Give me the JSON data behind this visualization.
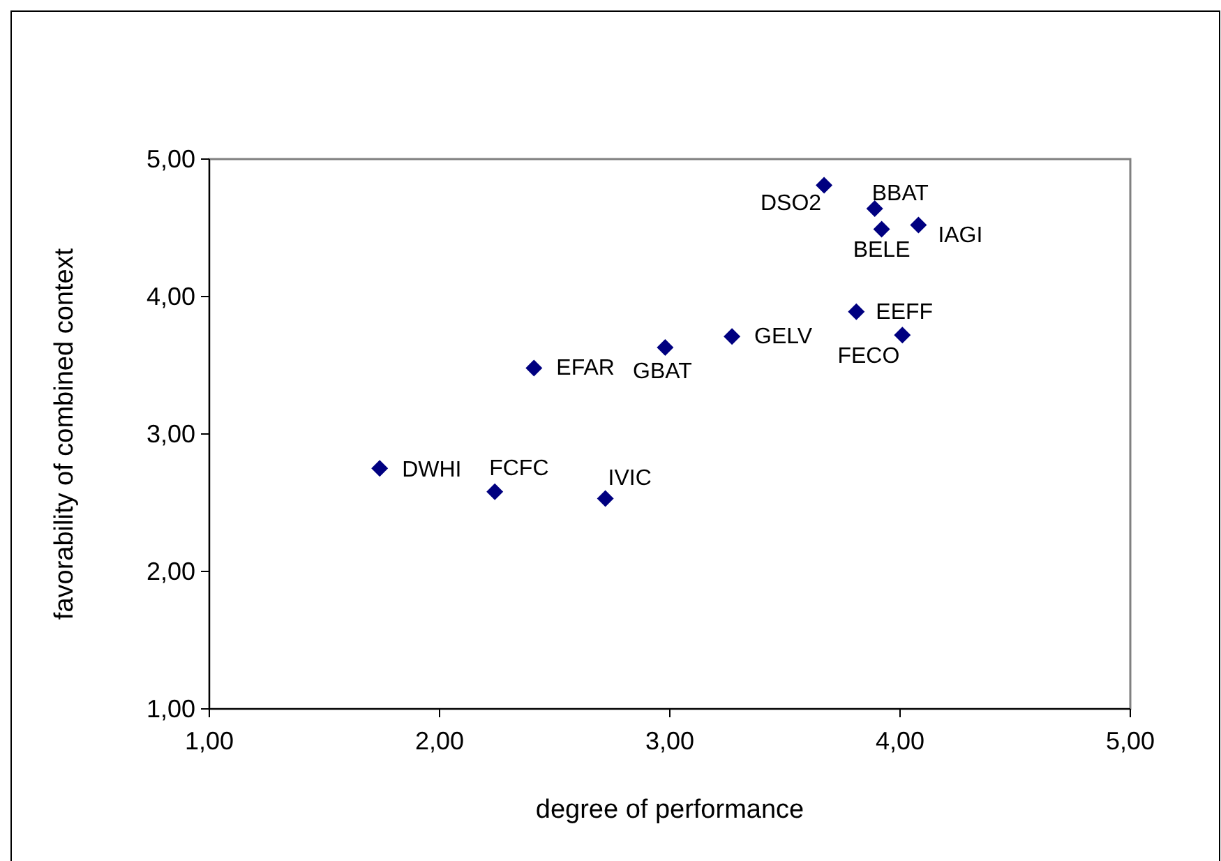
{
  "chart_data": {
    "type": "scatter",
    "xlabel": "degree of performance",
    "ylabel": "favorability of combined context",
    "x": [
      3.67,
      3.89,
      3.92,
      4.08,
      3.81,
      4.01,
      3.27,
      2.98,
      2.41,
      1.74,
      2.24,
      2.72
    ],
    "series": [
      {
        "color": "#000080",
        "values": [
          4.81,
          4.64,
          4.49,
          4.52,
          3.89,
          3.72,
          3.71,
          3.63,
          3.48,
          2.75,
          2.58,
          2.53
        ]
      }
    ],
    "xlim": [
      1,
      5
    ],
    "ylim": [
      1,
      5
    ],
    "xticks": [
      {
        "value": 1,
        "label": "1,00"
      },
      {
        "value": 2,
        "label": "2,00"
      },
      {
        "value": 3,
        "label": "3,00"
      },
      {
        "value": 4,
        "label": "4,00"
      },
      {
        "value": 5,
        "label": "5,00"
      }
    ],
    "yticks": [
      {
        "value": 1,
        "label": "1,00"
      },
      {
        "value": 2,
        "label": "2,00"
      },
      {
        "value": 3,
        "label": "3,00"
      },
      {
        "value": 4,
        "label": "4,00"
      },
      {
        "value": 5,
        "label": "5,00"
      }
    ],
    "grid": false,
    "marker": "diamond",
    "annotations": [
      {
        "text": "DSO2",
        "x": 3.67,
        "y": 4.81
      },
      {
        "text": "BBAT",
        "x": 3.89,
        "y": 4.64
      },
      {
        "text": "BELE",
        "x": 3.92,
        "y": 4.49
      },
      {
        "text": "IAGI",
        "x": 4.08,
        "y": 4.52
      },
      {
        "text": "EEFF",
        "x": 3.81,
        "y": 3.89
      },
      {
        "text": "FECO",
        "x": 4.01,
        "y": 3.72
      },
      {
        "text": "GELV",
        "x": 3.27,
        "y": 3.71
      },
      {
        "text": "GBAT",
        "x": 2.98,
        "y": 3.63
      },
      {
        "text": "EFAR",
        "x": 2.41,
        "y": 3.48
      },
      {
        "text": "DWHI",
        "x": 1.74,
        "y": 2.75
      },
      {
        "text": "FCFC",
        "x": 2.24,
        "y": 2.58
      },
      {
        "text": "IVIC",
        "x": 2.72,
        "y": 2.53
      }
    ]
  }
}
